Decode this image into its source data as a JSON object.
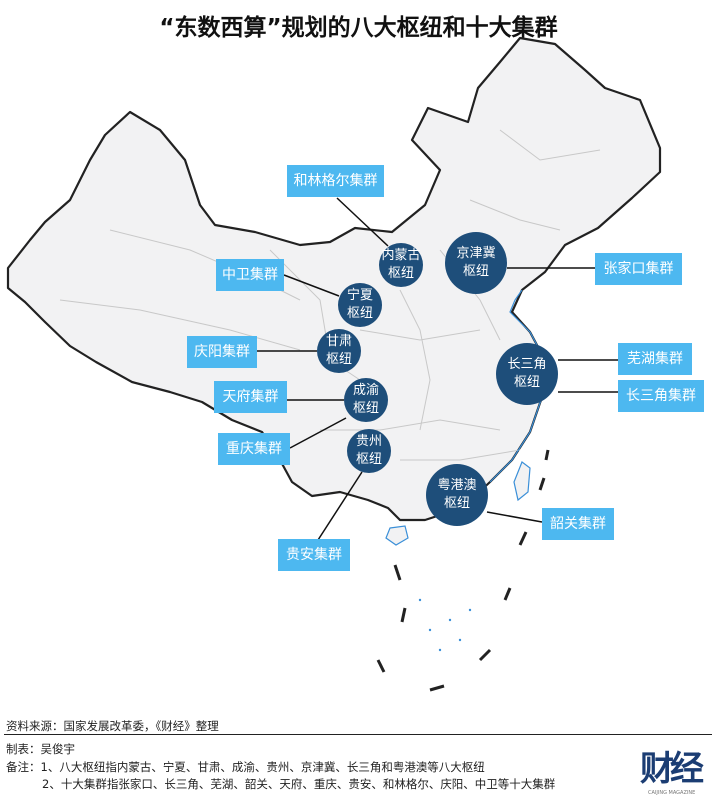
{
  "title": "“东数西算”规划的八大枢纽和十大集群",
  "colors": {
    "hub": "#1e4e7a",
    "cluster_label": "#4db8f0",
    "land": "#f2f2f3",
    "border": "#222222",
    "province_border": "#c8c8c8",
    "coast": "#3a8fd8"
  },
  "hubs": [
    {
      "line1": "内蒙古",
      "line2": "枢纽"
    },
    {
      "line1": "京津冀",
      "line2": "枢纽"
    },
    {
      "line1": "宁夏",
      "line2": "枢纽"
    },
    {
      "line1": "甘肃",
      "line2": "枢纽"
    },
    {
      "line1": "成渝",
      "line2": "枢纽"
    },
    {
      "line1": "贵州",
      "line2": "枢纽"
    },
    {
      "line1": "长三角",
      "line2": "枢纽"
    },
    {
      "line1": "粤港澳",
      "line2": "枢纽"
    }
  ],
  "clusters": [
    "和林格尔集群",
    "中卫集群",
    "庆阳集群",
    "天府集群",
    "重庆集群",
    "贵安集群",
    "张家口集群",
    "芜湖集群",
    "长三角集群",
    "韶关集群"
  ],
  "footer": {
    "source": "资料来源：国家发展改革委，《财经》整理",
    "author": "制表：吴俊宇",
    "note1": "备注：1、八大枢纽指内蒙古、宁夏、甘肃、成渝、贵州、京津冀、长三角和粤港澳等八大枢纽",
    "note2": "2、十大集群指张家口、长三角、芜湖、韶关、天府、重庆、贵安、和林格尔、庆阳、中卫等十大集群"
  },
  "logo": {
    "cn": "财经",
    "en": "CAIJING MAGAZINE"
  }
}
